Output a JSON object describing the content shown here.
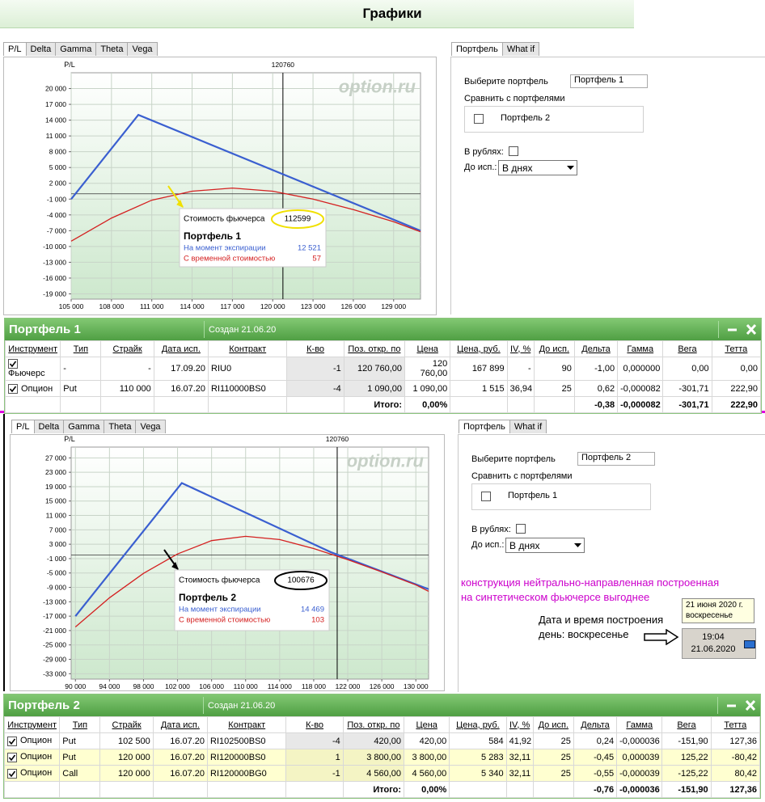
{
  "title": "Графики",
  "chart_tabs": [
    "P/L",
    "Delta",
    "Gamma",
    "Theta",
    "Vega"
  ],
  "side_tabs": [
    "Портфель",
    "What if"
  ],
  "chart_data": [
    {
      "type": "line",
      "y_label": "P/L",
      "watermark": "option.ru",
      "marker": 120760,
      "grid": true,
      "xlim": [
        105000,
        131000
      ],
      "xticks": [
        {
          "value": 105000,
          "label": "105 000"
        },
        {
          "value": 108000,
          "label": "108 000"
        },
        {
          "value": 111000,
          "label": "111 000"
        },
        {
          "value": 114000,
          "label": "114 000"
        },
        {
          "value": 117000,
          "label": "117 000"
        },
        {
          "value": 120000,
          "label": "120 000"
        },
        {
          "value": 123000,
          "label": "123 000"
        },
        {
          "value": 126000,
          "label": "126 000"
        },
        {
          "value": 129000,
          "label": "129 000"
        }
      ],
      "ylim": [
        -20000,
        23000
      ],
      "yticks": [
        {
          "value": 20000,
          "label": "20 000"
        },
        {
          "value": 17000,
          "label": "17 000"
        },
        {
          "value": 14000,
          "label": "14 000"
        },
        {
          "value": 11000,
          "label": "11 000"
        },
        {
          "value": 8000,
          "label": "8 000"
        },
        {
          "value": 5000,
          "label": "5 000"
        },
        {
          "value": 2000,
          "label": "2 000"
        },
        {
          "value": -1000,
          "label": "-1 000"
        },
        {
          "value": -4000,
          "label": "-4 000"
        },
        {
          "value": -7000,
          "label": "-7 000"
        },
        {
          "value": -10000,
          "label": "-10 000"
        },
        {
          "value": -13000,
          "label": "-13 000"
        },
        {
          "value": -16000,
          "label": "-16 000"
        },
        {
          "value": -19000,
          "label": "-19 000"
        }
      ],
      "series": [
        {
          "name": "На момент экспирации",
          "color": "#3a5fd0",
          "x": [
            105000,
            110000,
            131000
          ],
          "values": [
            -1000,
            15000,
            -7000
          ],
          "tooltip_value": "12 521"
        },
        {
          "name": "С временной стоимостью",
          "color": "#d42020",
          "x": [
            105000,
            108000,
            111000,
            114000,
            117000,
            120000,
            123000,
            126000,
            129000,
            131000
          ],
          "values": [
            -9000,
            -4600,
            -1200,
            500,
            1100,
            500,
            -1000,
            -3000,
            -5300,
            -7200
          ],
          "tooltip_value": "57"
        }
      ],
      "tooltip": {
        "futures_label": "Стоимость фьючерса",
        "futures_value": "112599",
        "portfolio": "Портфель 1"
      }
    },
    {
      "type": "line",
      "y_label": "P/L",
      "watermark": "option.ru",
      "marker": 120760,
      "grid": true,
      "xlim": [
        89500,
        131500
      ],
      "xticks": [
        {
          "value": 90000,
          "label": "90 000"
        },
        {
          "value": 94000,
          "label": "94 000"
        },
        {
          "value": 98000,
          "label": "98 000"
        },
        {
          "value": 102000,
          "label": "102 000"
        },
        {
          "value": 106000,
          "label": "106 000"
        },
        {
          "value": 110000,
          "label": "110 000"
        },
        {
          "value": 114000,
          "label": "114 000"
        },
        {
          "value": 118000,
          "label": "118 000"
        },
        {
          "value": 122000,
          "label": "122 000"
        },
        {
          "value": 126000,
          "label": "126 000"
        },
        {
          "value": 130000,
          "label": "130 000"
        }
      ],
      "ylim": [
        -34500,
        30000
      ],
      "yticks": [
        {
          "value": 27000,
          "label": "27 000"
        },
        {
          "value": 23000,
          "label": "23 000"
        },
        {
          "value": 19000,
          "label": "19 000"
        },
        {
          "value": 15000,
          "label": "15 000"
        },
        {
          "value": 11000,
          "label": "11 000"
        },
        {
          "value": 7000,
          "label": "7 000"
        },
        {
          "value": 3000,
          "label": "3 000"
        },
        {
          "value": -1000,
          "label": "-1 000"
        },
        {
          "value": -5000,
          "label": "-5 000"
        },
        {
          "value": -9000,
          "label": "-9 000"
        },
        {
          "value": -13000,
          "label": "-13 000"
        },
        {
          "value": -17000,
          "label": "-17 000"
        },
        {
          "value": -21000,
          "label": "-21 000"
        },
        {
          "value": -25000,
          "label": "-25 000"
        },
        {
          "value": -29000,
          "label": "-29 000"
        },
        {
          "value": -33000,
          "label": "-33 000"
        }
      ],
      "series": [
        {
          "name": "На момент экспирации",
          "color": "#3a5fd0",
          "x": [
            90000,
            102500,
            120000,
            131500
          ],
          "values": [
            -17000,
            20000,
            800,
            -9500
          ],
          "tooltip_value": "14 469"
        },
        {
          "name": "С временной стоимостью",
          "color": "#d42020",
          "x": [
            90000,
            94000,
            98000,
            102000,
            106000,
            110000,
            114000,
            118000,
            122000,
            126000,
            130000,
            131500
          ],
          "values": [
            -20000,
            -11900,
            -5100,
            300,
            4000,
            5200,
            4300,
            1800,
            -1300,
            -4700,
            -8300,
            -10100
          ],
          "tooltip_value": "103"
        }
      ],
      "tooltip": {
        "futures_label": "Стоимость фьючерса",
        "futures_value": "100676",
        "portfolio": "Портфель 2"
      }
    }
  ],
  "side_panels": [
    {
      "select_label": "Выберите портфель",
      "selected": "Портфель 1",
      "compare_label": "Сравнить с портфелями",
      "compare_option": "Портфель 2",
      "rubles_label": "В рублях:",
      "expiry_label": "До исп.:",
      "expiry_value": "В днях"
    },
    {
      "select_label": "Выберите портфель",
      "selected": "Портфель 2",
      "compare_label": "Сравнить с портфелями",
      "compare_option": "Портфель 1",
      "rubles_label": "В рублях:",
      "expiry_label": "До исп.:",
      "expiry_value": "В днях"
    }
  ],
  "tables": [
    {
      "title": "Портфель 1",
      "created": "Создан 21.06.20",
      "columns": [
        "Инструмент",
        "Тип",
        "Страйк",
        "Дата исп.",
        "Контракт",
        "К-во",
        "Поз. откр. по",
        "Цена",
        "Цена, руб.",
        "IV, %",
        "До исп.",
        "Дельта",
        "Гамма",
        "Вега",
        "Тетта"
      ],
      "rows": [
        [
          "Фьючерс",
          "-",
          "-",
          "17.09.20",
          "RIU0",
          "-1",
          "120 760,00",
          "120 760,00",
          "167 899",
          "-",
          "90",
          "-1,00",
          "0,000000",
          "0,00",
          "0,00"
        ],
        [
          "Опцион",
          "Put",
          "110 000",
          "16.07.20",
          "RI110000BS0",
          "-4",
          "1 090,00",
          "1 090,00",
          "1 515",
          "36,94",
          "25",
          "0,62",
          "-0,000082",
          "-301,71",
          "222,90"
        ]
      ],
      "totals": {
        "6": "Итого:",
        "7": "0,00%",
        "11": "-0,38",
        "12": "-0,000082",
        "13": "-301,71",
        "14": "222,90"
      }
    },
    {
      "title": "Портфель 2",
      "created": "Создан 21.06.20",
      "columns": [
        "Инструмент",
        "Тип",
        "Страйк",
        "Дата исп.",
        "Контракт",
        "К-во",
        "Поз. откр. по",
        "Цена",
        "Цена, руб.",
        "IV, %",
        "До исп.",
        "Дельта",
        "Гамма",
        "Вега",
        "Тетта"
      ],
      "rows": [
        [
          "Опцион",
          "Put",
          "102 500",
          "16.07.20",
          "RI102500BS0",
          "-4",
          "420,00",
          "420,00",
          "584",
          "41,92",
          "25",
          "0,24",
          "-0,000036",
          "-151,90",
          "127,36"
        ],
        [
          "Опцион",
          "Put",
          "120 000",
          "16.07.20",
          "RI120000BS0",
          "1",
          "3 800,00",
          "3 800,00",
          "5 283",
          "32,11",
          "25",
          "-0,45",
          "0,000039",
          "125,22",
          "-80,42"
        ],
        [
          "Опцион",
          "Call",
          "120 000",
          "16.07.20",
          "RI120000BG0",
          "-1",
          "4 560,00",
          "4 560,00",
          "5 340",
          "32,11",
          "25",
          "-0,55",
          "-0,000039",
          "-125,22",
          "80,42"
        ]
      ],
      "totals": {
        "6": "Итого:",
        "7": "0,00%",
        "11": "-0,76",
        "12": "-0,000036",
        "13": "-151,90",
        "14": "127,36"
      }
    }
  ],
  "annotation": [
    "конструкция нейтрально-направленная построенная",
    "на синтетическом фьючерсе выгоднее"
  ],
  "date_tooltip": [
    "21 июня 2020 г.",
    "воскресенье"
  ],
  "note": [
    "Дата и время построения",
    "день: воскресенье"
  ],
  "clock": [
    "19:04",
    "21.06.2020"
  ]
}
